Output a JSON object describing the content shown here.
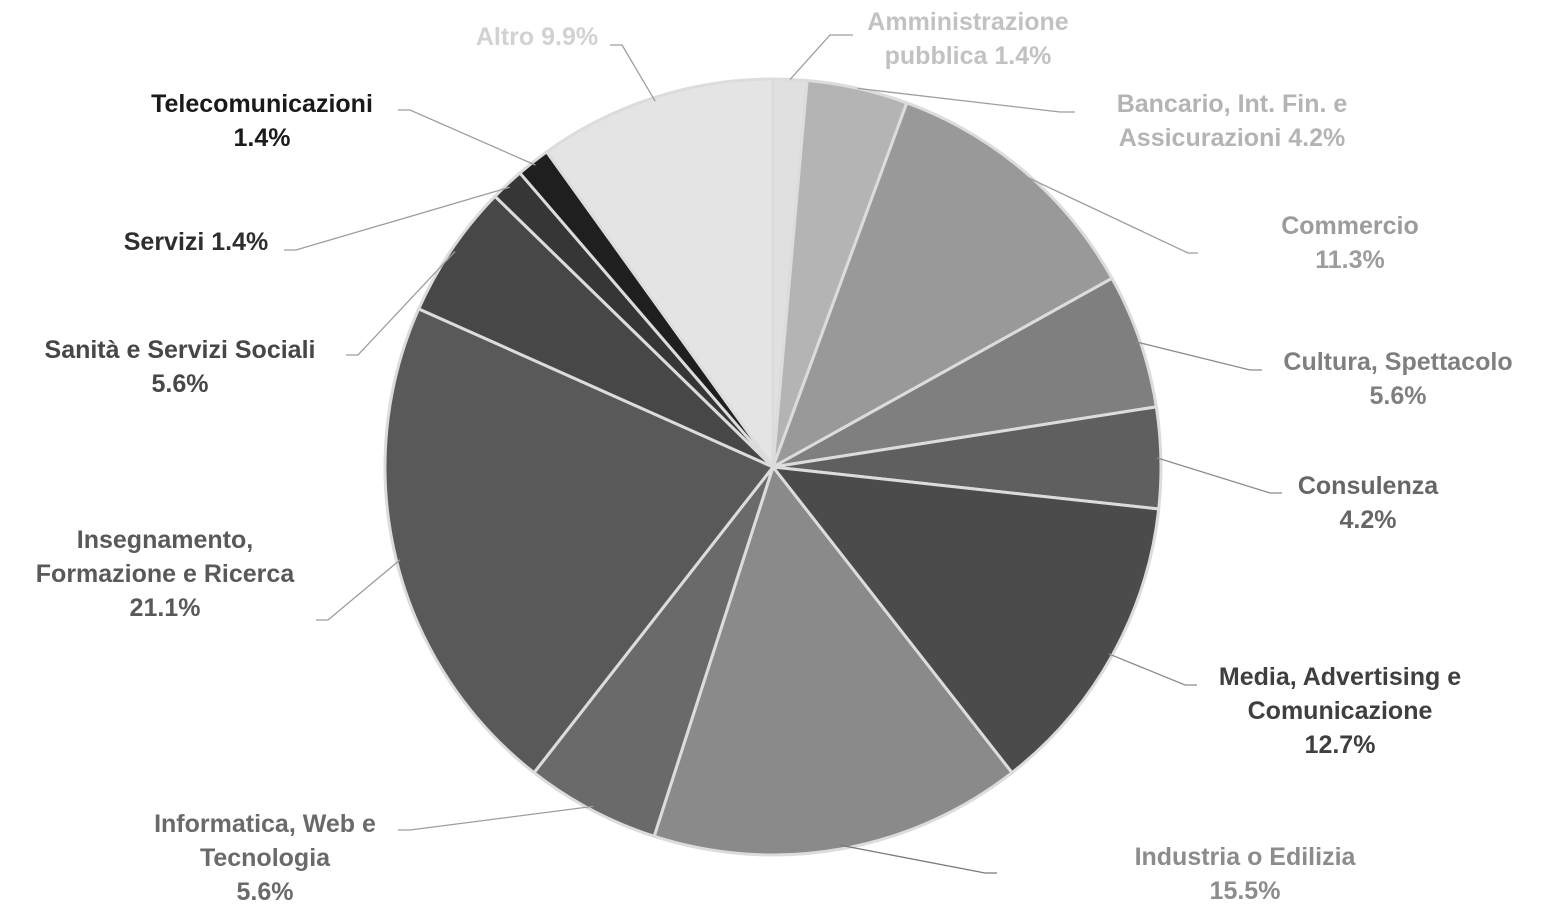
{
  "chart_data": {
    "type": "pie",
    "title": "",
    "slices": [
      {
        "name": "Amministrazione pubblica",
        "value": 1.4,
        "label": [
          "Amministrazione",
          "pubblica 1.4%"
        ],
        "color": "#e0e0e0",
        "label_color": "#c2c2c2",
        "leader_color": "#9e9e9e"
      },
      {
        "name": "Bancario, Int. Fin. e Assicurazioni",
        "value": 4.2,
        "label": [
          "Bancario, Int. Fin. e",
          "Assicurazioni 4.2%"
        ],
        "color": "#b4b4b4",
        "label_color": "#b4b4b4",
        "leader_color": "#9e9e9e"
      },
      {
        "name": "Commercio",
        "value": 11.3,
        "label": [
          "Commercio",
          "11.3%"
        ],
        "color": "#999999",
        "label_color": "#9c9c9c",
        "leader_color": "#9e9e9e"
      },
      {
        "name": "Cultura, Spettacolo",
        "value": 5.6,
        "label": [
          "Cultura, Spettacolo",
          "5.6%"
        ],
        "color": "#7f7f7f",
        "label_color": "#7f7f7f",
        "leader_color": "#8c8c8c"
      },
      {
        "name": "Consulenza",
        "value": 4.2,
        "label": [
          "Consulenza",
          "4.2%"
        ],
        "color": "#5f5f5f",
        "label_color": "#666666",
        "leader_color": "#8c8c8c"
      },
      {
        "name": "Media, Advertising e Comunicazione",
        "value": 12.7,
        "label": [
          "Media, Advertising e",
          "Comunicazione",
          "12.7%"
        ],
        "color": "#4b4b4b",
        "label_color": "#3f3f3f",
        "leader_color": "#8c8c8c"
      },
      {
        "name": "Industria o Edilizia",
        "value": 15.5,
        "label": [
          "Industria o Edilizia",
          "15.5%"
        ],
        "color": "#8a8a8a",
        "label_color": "#8c8c8c",
        "leader_color": "#7a7a7a"
      },
      {
        "name": "Informatica, Web e Tecnologia",
        "value": 5.6,
        "label": [
          "Informatica, Web e",
          "Tecnologia",
          "5.6%"
        ],
        "color": "#6a6a6a",
        "label_color": "#6a6a6a",
        "leader_color": "#9e9e9e"
      },
      {
        "name": "Insegnamento, Formazione e Ricerca",
        "value": 21.1,
        "label": [
          "Insegnamento,",
          "Formazione e Ricerca",
          "21.1%"
        ],
        "color": "#595959",
        "label_color": "#595959",
        "leader_color": "#9e9e9e"
      },
      {
        "name": "Sanità e Servizi Sociali",
        "value": 5.6,
        "label": [
          "Sanità e Servizi Sociali",
          "5.6%"
        ],
        "color": "#474747",
        "label_color": "#474747",
        "leader_color": "#9e9e9e"
      },
      {
        "name": "Servizi",
        "value": 1.4,
        "label": [
          "Servizi 1.4%"
        ],
        "color": "#363636",
        "label_color": "#2e2e2e",
        "leader_color": "#9e9e9e"
      },
      {
        "name": "Telecomunicazioni",
        "value": 1.4,
        "label": [
          "Telecomunicazioni",
          "1.4%"
        ],
        "color": "#1f1f1f",
        "label_color": "#1a1a1a",
        "leader_color": "#9e9e9e"
      },
      {
        "name": "Altro",
        "value": 9.9,
        "label": [
          "Altro 9.9%"
        ],
        "color": "#e4e4e4",
        "label_color": "#d2d2d2",
        "leader_color": "#9e9e9e"
      }
    ],
    "legend": "none",
    "start_angle": "12 o'clock",
    "direction": "clockwise",
    "separator_color": "#dcdcdc"
  }
}
